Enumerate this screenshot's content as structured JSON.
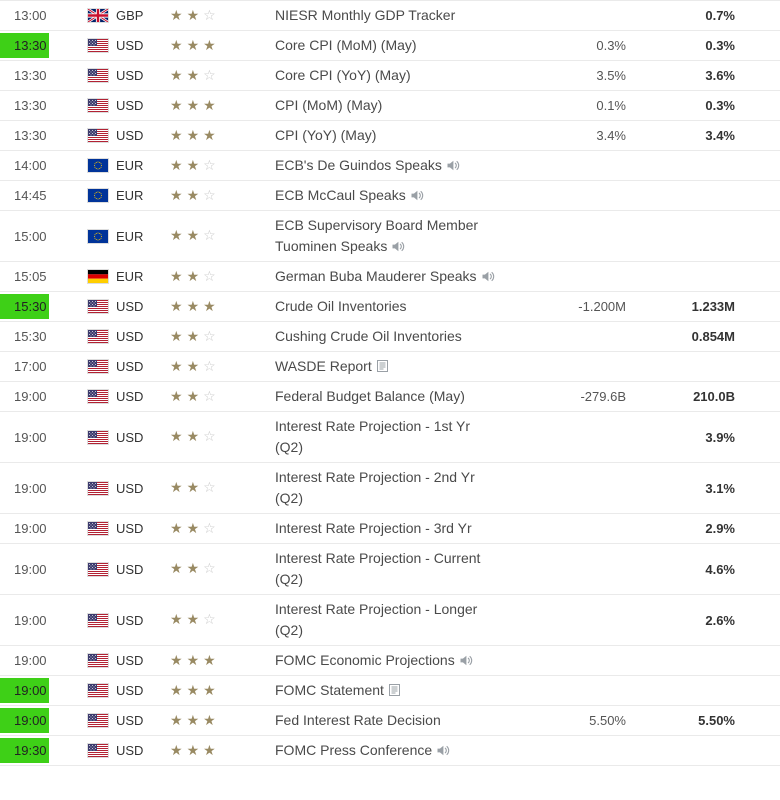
{
  "colors": {
    "highlight_green": "#3ed017",
    "star_filled": "#998a63",
    "star_empty": "#c9c9c9",
    "row_border": "#eaeaea"
  },
  "table": {
    "columns": [
      "time",
      "currency",
      "importance",
      "event",
      "forecast",
      "previous"
    ],
    "rows": [
      {
        "time": "13:00",
        "highlight": false,
        "flag": "gb",
        "currency": "GBP",
        "stars": 2,
        "event": "NIESR Monthly GDP Tracker",
        "icon": "",
        "forecast": "",
        "previous": "0.7%"
      },
      {
        "time": "13:30",
        "highlight": true,
        "flag": "us",
        "currency": "USD",
        "stars": 3,
        "event": "Core CPI (MoM) (May)",
        "icon": "",
        "forecast": "0.3%",
        "previous": "0.3%"
      },
      {
        "time": "13:30",
        "highlight": false,
        "flag": "us",
        "currency": "USD",
        "stars": 2,
        "event": "Core CPI (YoY) (May)",
        "icon": "",
        "forecast": "3.5%",
        "previous": "3.6%"
      },
      {
        "time": "13:30",
        "highlight": false,
        "flag": "us",
        "currency": "USD",
        "stars": 3,
        "event": "CPI (MoM) (May)",
        "icon": "",
        "forecast": "0.1%",
        "previous": "0.3%"
      },
      {
        "time": "13:30",
        "highlight": false,
        "flag": "us",
        "currency": "USD",
        "stars": 3,
        "event": "CPI (YoY) (May)",
        "icon": "",
        "forecast": "3.4%",
        "previous": "3.4%"
      },
      {
        "time": "14:00",
        "highlight": false,
        "flag": "eu",
        "currency": "EUR",
        "stars": 2,
        "event": "ECB's De Guindos Speaks",
        "icon": "speaker",
        "forecast": "",
        "previous": ""
      },
      {
        "time": "14:45",
        "highlight": false,
        "flag": "eu",
        "currency": "EUR",
        "stars": 2,
        "event": "ECB McCaul Speaks",
        "icon": "speaker",
        "forecast": "",
        "previous": ""
      },
      {
        "time": "15:00",
        "highlight": false,
        "flag": "eu",
        "currency": "EUR",
        "stars": 2,
        "event": "ECB Supervisory Board Member Tuominen Speaks",
        "icon": "speaker",
        "forecast": "",
        "previous": ""
      },
      {
        "time": "15:05",
        "highlight": false,
        "flag": "de",
        "currency": "EUR",
        "stars": 2,
        "event": "German Buba Mauderer Speaks",
        "icon": "speaker",
        "forecast": "",
        "previous": ""
      },
      {
        "time": "15:30",
        "highlight": true,
        "flag": "us",
        "currency": "USD",
        "stars": 3,
        "event": "Crude Oil Inventories",
        "icon": "",
        "forecast": "-1.200M",
        "previous": "1.233M"
      },
      {
        "time": "15:30",
        "highlight": false,
        "flag": "us",
        "currency": "USD",
        "stars": 2,
        "event": "Cushing Crude Oil Inventories",
        "icon": "",
        "forecast": "",
        "previous": "0.854M"
      },
      {
        "time": "17:00",
        "highlight": false,
        "flag": "us",
        "currency": "USD",
        "stars": 2,
        "event": "WASDE Report",
        "icon": "report",
        "forecast": "",
        "previous": ""
      },
      {
        "time": "19:00",
        "highlight": false,
        "flag": "us",
        "currency": "USD",
        "stars": 2,
        "event": "Federal Budget Balance (May)",
        "icon": "",
        "forecast": "-279.6B",
        "previous": "210.0B"
      },
      {
        "time": "19:00",
        "highlight": false,
        "flag": "us",
        "currency": "USD",
        "stars": 2,
        "event": "Interest Rate Projection - 1st Yr (Q2)",
        "icon": "",
        "forecast": "",
        "previous": "3.9%"
      },
      {
        "time": "19:00",
        "highlight": false,
        "flag": "us",
        "currency": "USD",
        "stars": 2,
        "event": "Interest Rate Projection - 2nd Yr (Q2)",
        "icon": "",
        "forecast": "",
        "previous": "3.1%"
      },
      {
        "time": "19:00",
        "highlight": false,
        "flag": "us",
        "currency": "USD",
        "stars": 2,
        "event": "Interest Rate Projection - 3rd Yr",
        "icon": "",
        "forecast": "",
        "previous": "2.9%"
      },
      {
        "time": "19:00",
        "highlight": false,
        "flag": "us",
        "currency": "USD",
        "stars": 2,
        "event": "Interest Rate Projection - Current (Q2)",
        "icon": "",
        "forecast": "",
        "previous": "4.6%"
      },
      {
        "time": "19:00",
        "highlight": false,
        "flag": "us",
        "currency": "USD",
        "stars": 2,
        "event": "Interest Rate Projection - Longer (Q2)",
        "icon": "",
        "forecast": "",
        "previous": "2.6%"
      },
      {
        "time": "19:00",
        "highlight": false,
        "flag": "us",
        "currency": "USD",
        "stars": 3,
        "event": "FOMC Economic Projections",
        "icon": "speaker",
        "forecast": "",
        "previous": ""
      },
      {
        "time": "19:00",
        "highlight": true,
        "flag": "us",
        "currency": "USD",
        "stars": 3,
        "event": "FOMC Statement",
        "icon": "report",
        "forecast": "",
        "previous": ""
      },
      {
        "time": "19:00",
        "highlight": true,
        "flag": "us",
        "currency": "USD",
        "stars": 3,
        "event": "Fed Interest Rate Decision",
        "icon": "",
        "forecast": "5.50%",
        "previous": "5.50%"
      },
      {
        "time": "19:30",
        "highlight": true,
        "flag": "us",
        "currency": "USD",
        "stars": 3,
        "event": "FOMC Press Conference",
        "icon": "speaker",
        "forecast": "",
        "previous": ""
      }
    ]
  }
}
